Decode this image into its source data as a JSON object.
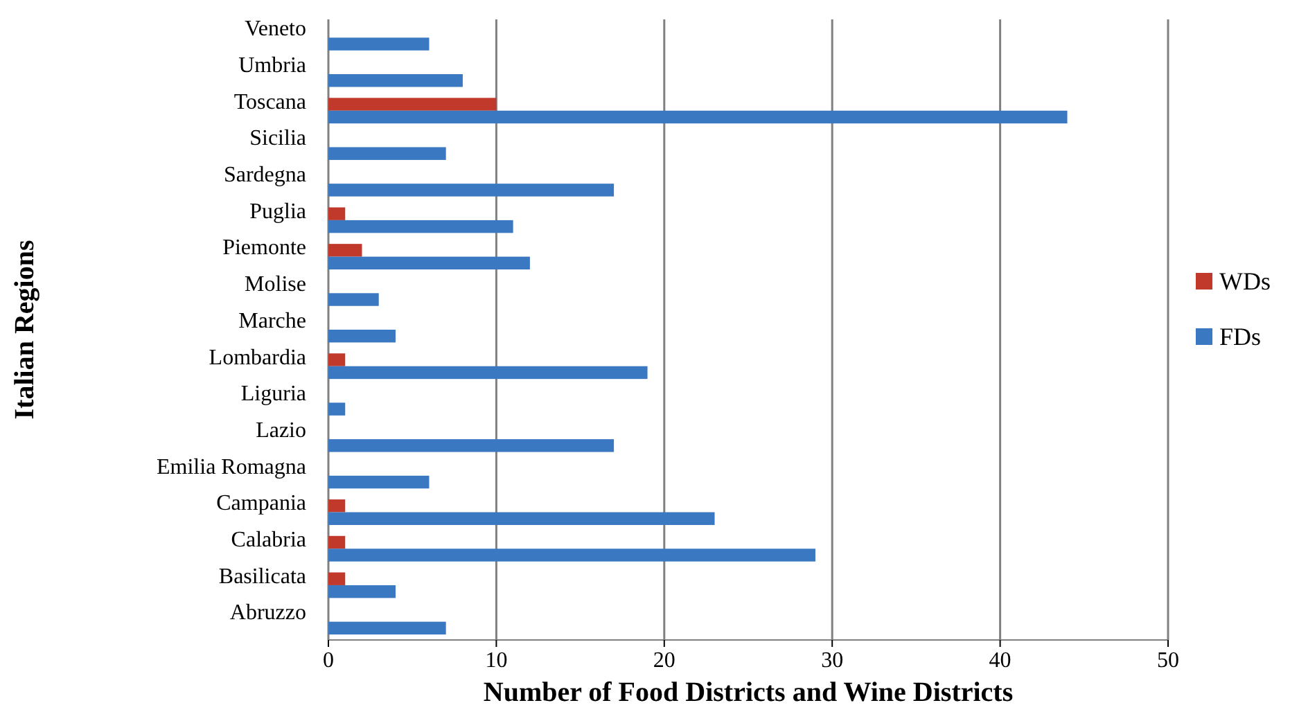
{
  "chart_data": {
    "type": "bar",
    "orientation": "horizontal",
    "xlabel": "Number of Food Districts and Wine Districts",
    "ylabel": "Italian Regions",
    "categories": [
      "Veneto",
      "Umbria",
      "Toscana",
      "Sicilia",
      "Sardegna",
      "Puglia",
      "Piemonte",
      "Molise",
      "Marche",
      "Lombardia",
      "Liguria",
      "Lazio",
      "Emilia Romagna",
      "Campania",
      "Calabria",
      "Basilicata",
      "Abruzzo"
    ],
    "series": [
      {
        "name": "WDs",
        "color": "#c0392b",
        "values": [
          0,
          0,
          10,
          0,
          0,
          1,
          2,
          0,
          0,
          1,
          0,
          0,
          0,
          1,
          1,
          1,
          0
        ]
      },
      {
        "name": "FDs",
        "color": "#3a78c2",
        "values": [
          6,
          8,
          44,
          7,
          17,
          11,
          12,
          3,
          4,
          19,
          1,
          17,
          6,
          23,
          29,
          4,
          7
        ]
      }
    ],
    "xlim": [
      0,
      50
    ],
    "xticks": [
      0,
      10,
      20,
      30,
      40,
      50
    ],
    "grid": "x",
    "legend": "right"
  }
}
